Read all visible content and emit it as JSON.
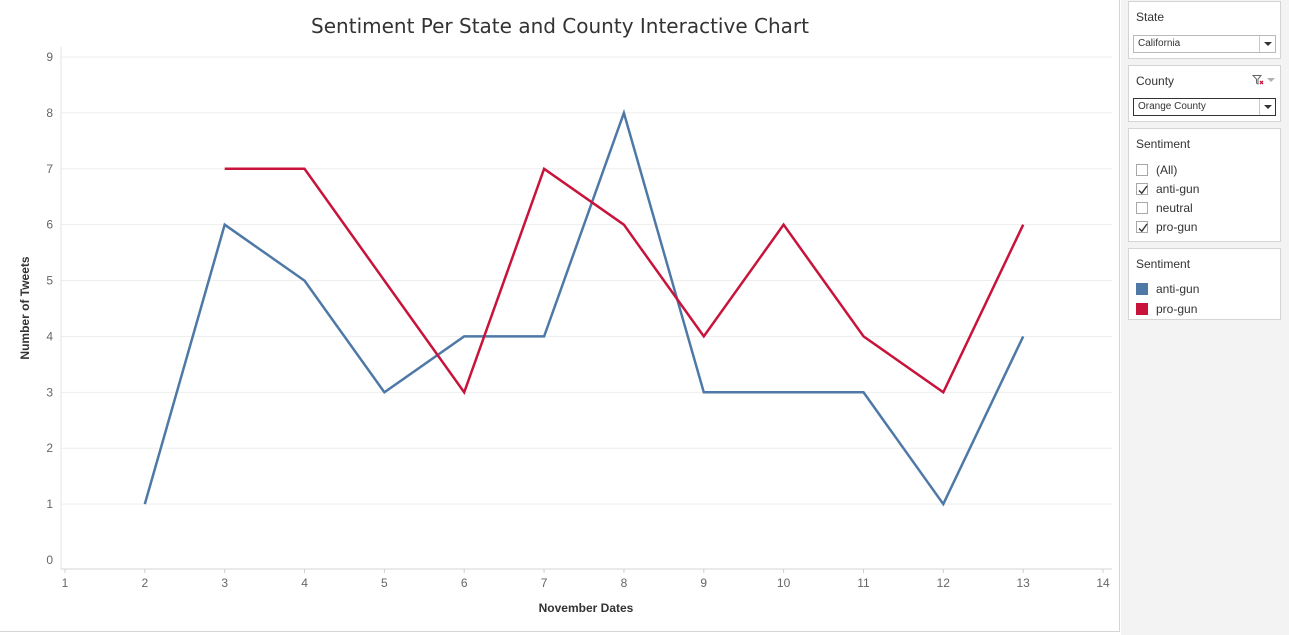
{
  "chart_data": {
    "type": "line",
    "title": "Sentiment Per State and County Interactive Chart",
    "xlabel": "November Dates",
    "ylabel": "Number of Tweets",
    "xlim": [
      1,
      14
    ],
    "ylim": [
      0,
      9
    ],
    "x_ticks": [
      1,
      2,
      3,
      4,
      5,
      6,
      7,
      8,
      9,
      10,
      11,
      12,
      13,
      14
    ],
    "y_ticks": [
      0,
      1,
      2,
      3,
      4,
      5,
      6,
      7,
      8,
      9
    ],
    "grid": true,
    "legend_position": "right",
    "series": [
      {
        "name": "anti-gun",
        "color": "#4e79a7",
        "points": [
          [
            2,
            1
          ],
          [
            3,
            6
          ],
          [
            4,
            5
          ],
          [
            5,
            3
          ],
          [
            6,
            4
          ],
          [
            7,
            4
          ],
          [
            8,
            8
          ],
          [
            9,
            3
          ],
          [
            10,
            3
          ],
          [
            11,
            3
          ],
          [
            12,
            1
          ],
          [
            13,
            4
          ]
        ]
      },
      {
        "name": "pro-gun",
        "color": "#c8133b",
        "points": [
          [
            3,
            7
          ],
          [
            4,
            7
          ],
          [
            5,
            5
          ],
          [
            6,
            3
          ],
          [
            7,
            7
          ],
          [
            8,
            6
          ],
          [
            9,
            4
          ],
          [
            10,
            6
          ],
          [
            11,
            4
          ],
          [
            12,
            3
          ],
          [
            13,
            6
          ]
        ]
      }
    ]
  },
  "filters": {
    "state": {
      "title": "State",
      "value": "California"
    },
    "county": {
      "title": "County",
      "value": "Orange County"
    },
    "sentiment": {
      "title": "Sentiment",
      "options": [
        {
          "label": "(All)",
          "checked": false
        },
        {
          "label": "anti-gun",
          "checked": true
        },
        {
          "label": "neutral",
          "checked": false
        },
        {
          "label": "pro-gun",
          "checked": true
        }
      ]
    }
  },
  "legend": {
    "title": "Sentiment",
    "items": [
      {
        "label": "anti-gun",
        "color": "#4e79a7"
      },
      {
        "label": "pro-gun",
        "color": "#c8133b"
      }
    ]
  }
}
